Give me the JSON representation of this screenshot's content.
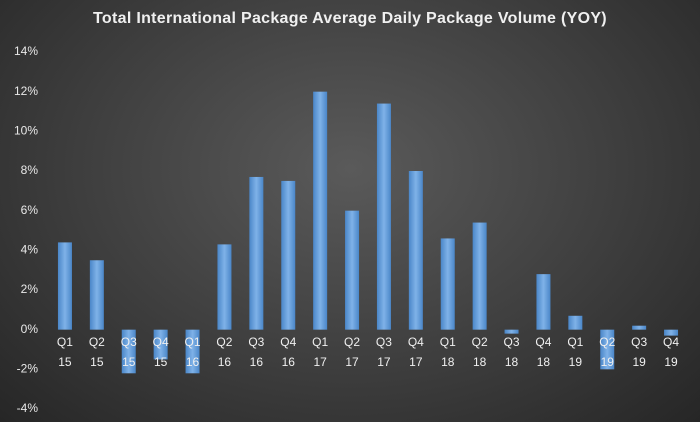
{
  "chart_data": {
    "type": "bar",
    "title": "Total International Package Average Daily Package Volume (YOY)",
    "categories": [
      "Q1 15",
      "Q2 15",
      "Q3 15",
      "Q4 15",
      "Q1 16",
      "Q2 16",
      "Q3 16",
      "Q4 16",
      "Q1 17",
      "Q2 17",
      "Q3 17",
      "Q4 17",
      "Q1 18",
      "Q2 18",
      "Q3 18",
      "Q4 18",
      "Q1 19",
      "Q2 19",
      "Q3 19",
      "Q4 19"
    ],
    "values": [
      4.4,
      3.5,
      -2.2,
      -1.5,
      -2.2,
      4.3,
      7.7,
      7.5,
      12.0,
      6.0,
      11.4,
      8.0,
      4.6,
      5.4,
      -0.2,
      2.8,
      0.7,
      -2.0,
      0.2,
      -0.3
    ],
    "color": "#5b9bd5",
    "ylim": [
      -4,
      14
    ],
    "yticks": [
      {
        "value": -4,
        "label": "-4%"
      },
      {
        "value": -2,
        "label": "-2%"
      },
      {
        "value": 0,
        "label": "0%"
      },
      {
        "value": 2,
        "label": "2%"
      },
      {
        "value": 4,
        "label": "4%"
      },
      {
        "value": 6,
        "label": "6%"
      },
      {
        "value": 8,
        "label": "8%"
      },
      {
        "value": 10,
        "label": "10%"
      },
      {
        "value": 12,
        "label": "12%"
      },
      {
        "value": 14,
        "label": "14%"
      }
    ],
    "grid": false
  }
}
